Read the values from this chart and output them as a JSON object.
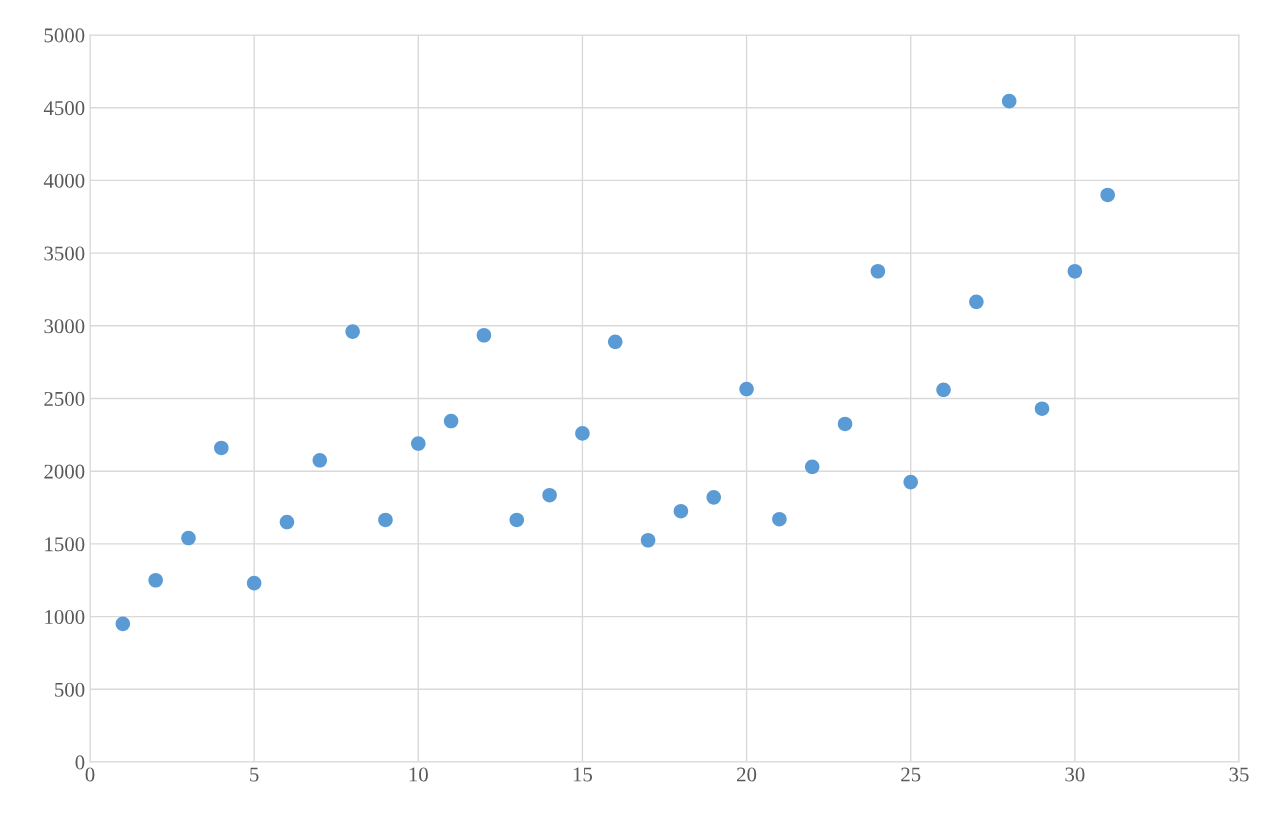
{
  "chart_data": {
    "type": "scatter",
    "x": [
      1,
      2,
      3,
      4,
      5,
      6,
      7,
      8,
      9,
      10,
      11,
      12,
      13,
      14,
      15,
      16,
      17,
      18,
      19,
      20,
      21,
      22,
      23,
      24,
      25,
      26,
      27,
      28,
      29,
      30,
      31
    ],
    "series": [
      {
        "color": "#5b9bd5",
        "values": [
          950,
          1250,
          1540,
          2160,
          1230,
          1650,
          2075,
          2960,
          1665,
          2190,
          2345,
          2935,
          1665,
          1835,
          2260,
          2890,
          1525,
          1725,
          1820,
          2565,
          1670,
          2030,
          2325,
          3375,
          1925,
          2560,
          3165,
          4545,
          2430,
          3375,
          3900
        ]
      }
    ],
    "xlim": [
      0,
      35
    ],
    "xticks": [
      0,
      5,
      10,
      15,
      20,
      25,
      30,
      35
    ],
    "ylim": [
      0,
      5000
    ],
    "yticks": [
      0,
      500,
      1000,
      1500,
      2000,
      2500,
      3000,
      3500,
      4000,
      4500,
      5000
    ],
    "grid": true,
    "marker": "circle"
  }
}
